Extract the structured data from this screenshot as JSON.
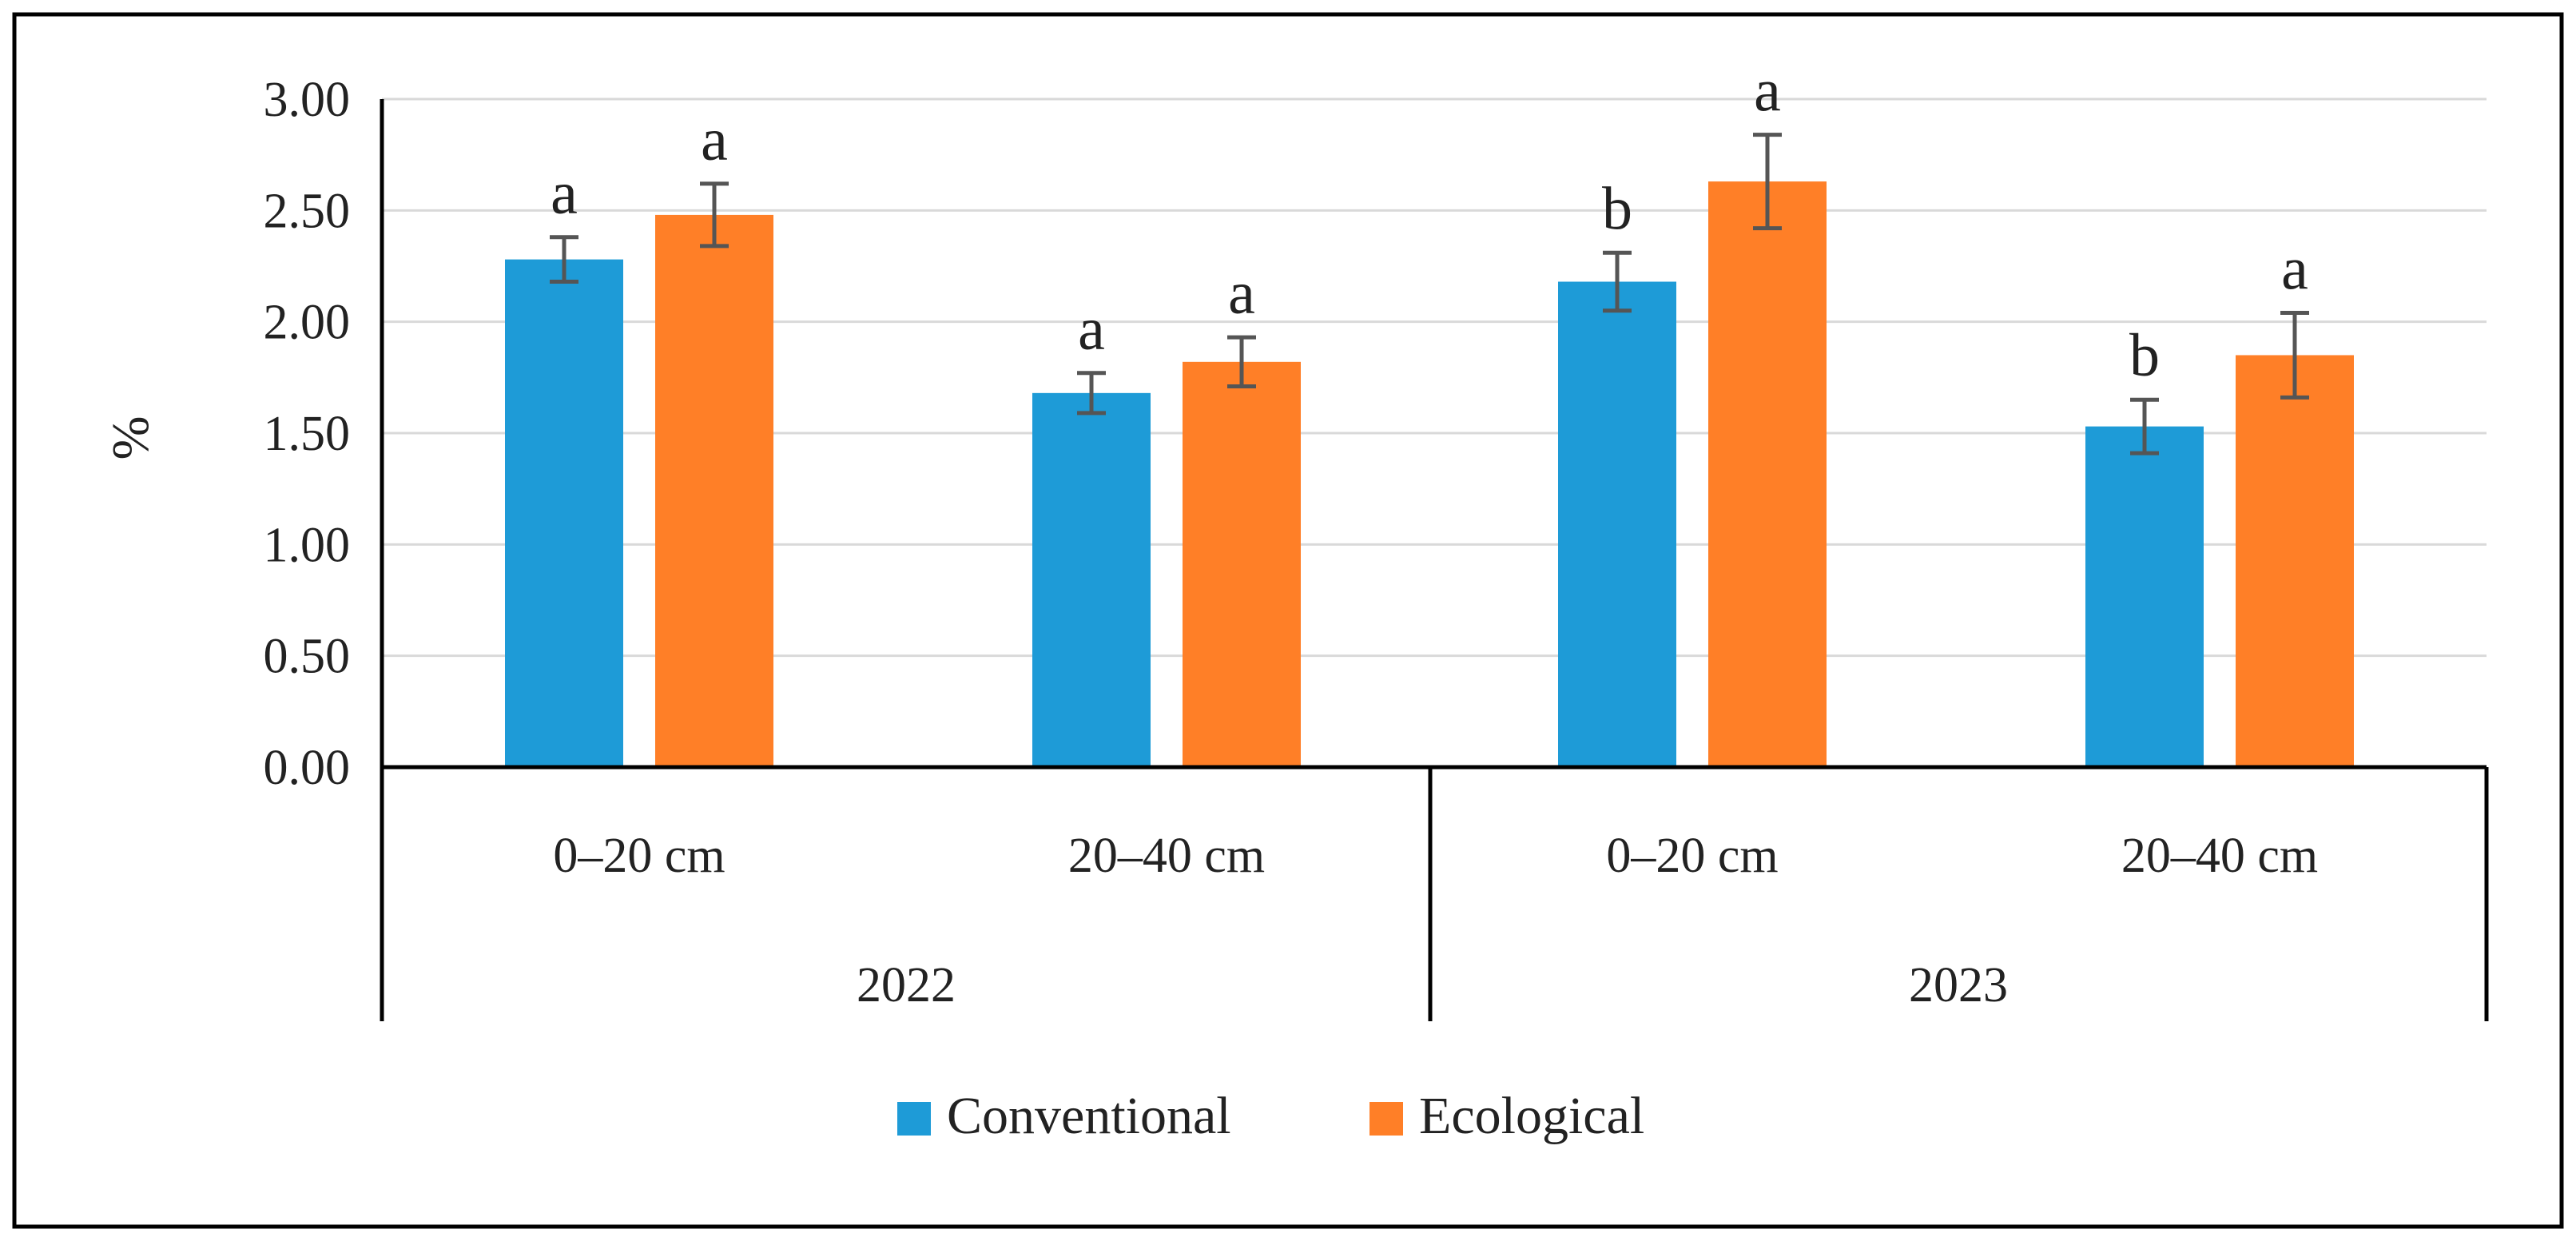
{
  "chart_data": {
    "type": "bar",
    "title": "",
    "xlabel": "",
    "ylabel": "%",
    "ylim": [
      0,
      3
    ],
    "yticks": [
      "0.00",
      "0.50",
      "1.00",
      "1.50",
      "2.00",
      "2.50",
      "3.00"
    ],
    "grid": true,
    "legend_position": "bottom-center",
    "groups": [
      {
        "label": "2022",
        "categories": [
          "0–20 cm",
          "20–40 cm"
        ]
      },
      {
        "label": "2023",
        "categories": [
          "0–20 cm",
          "20–40 cm"
        ]
      }
    ],
    "categories": [
      "0–20 cm",
      "20–40 cm",
      "0–20 cm",
      "20–40 cm"
    ],
    "series": [
      {
        "name": "Conventional",
        "color": "#1E9BD7",
        "values": [
          2.28,
          1.68,
          2.18,
          1.53
        ],
        "errors": [
          0.1,
          0.09,
          0.13,
          0.12
        ],
        "significance": [
          "a",
          "a",
          "b",
          "b"
        ]
      },
      {
        "name": "Ecological",
        "color": "#FF7F27",
        "values": [
          2.48,
          1.82,
          2.63,
          1.85
        ],
        "errors": [
          0.14,
          0.11,
          0.21,
          0.19
        ],
        "significance": [
          "a",
          "a",
          "a",
          "a"
        ]
      }
    ]
  }
}
